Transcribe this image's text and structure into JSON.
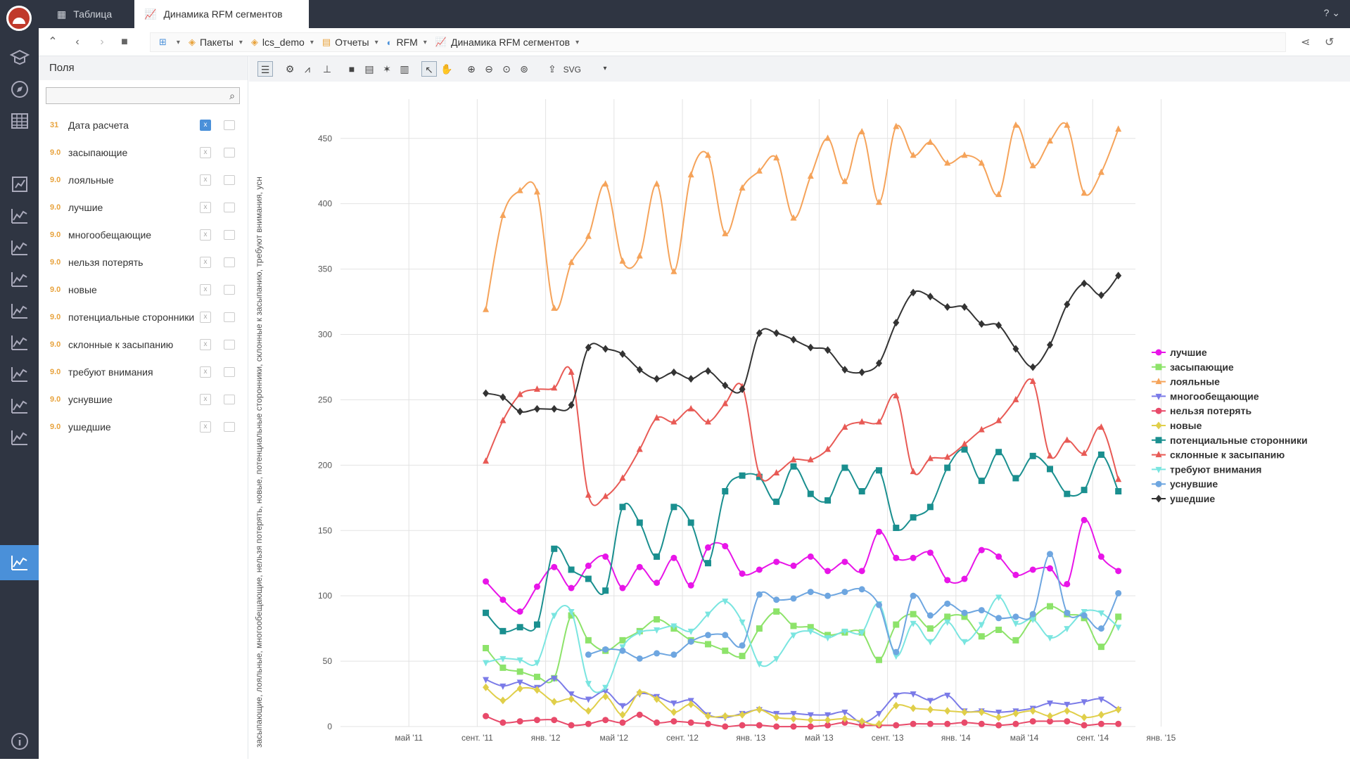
{
  "tabs": [
    {
      "label": "Таблица",
      "icon": "table-icon"
    },
    {
      "label": "Динамика RFM сегментов",
      "icon": "line-chart-icon"
    }
  ],
  "breadcrumbs": [
    "Пакеты",
    "lcs_demo",
    "Отчеты",
    "RFM",
    "Динамика RFM сегментов"
  ],
  "fields_panel": {
    "title": "Поля",
    "search_placeholder": "",
    "items": [
      {
        "type": "31",
        "name": "Дата расчета"
      },
      {
        "type": "9.0",
        "name": "засыпающие"
      },
      {
        "type": "9.0",
        "name": "лояльные"
      },
      {
        "type": "9.0",
        "name": "лучшие"
      },
      {
        "type": "9.0",
        "name": "многообещающие"
      },
      {
        "type": "9.0",
        "name": "нельзя потерять"
      },
      {
        "type": "9.0",
        "name": "новые"
      },
      {
        "type": "9.0",
        "name": "потенциальные сторонники"
      },
      {
        "type": "9.0",
        "name": "склонные к засыпанию"
      },
      {
        "type": "9.0",
        "name": "требуют внимания"
      },
      {
        "type": "9.0",
        "name": "уснувшие"
      },
      {
        "type": "9.0",
        "name": "ушедшие"
      }
    ]
  },
  "toolbar": {
    "export_label": "SVG"
  },
  "chart_data": {
    "type": "line",
    "ylabel": "засыпающие, лояльные, многообещающие, нельзя потерять, новые, потенциальные сторонники, склонные к засыпанию, требуют внимания, усн",
    "ylim": [
      0,
      480
    ],
    "yticks": [
      0,
      50,
      100,
      150,
      200,
      250,
      300,
      350,
      400,
      450
    ],
    "xticks": [
      "май '11",
      "сент. '11",
      "янв. '12",
      "май '12",
      "сент. '12",
      "янв. '13",
      "май '13",
      "сент. '13",
      "янв. '14",
      "май '14",
      "сент. '14",
      "янв. '15"
    ],
    "x_range_months": [
      -1,
      45.5
    ],
    "x_months": [
      7.5,
      8.5,
      9.5,
      10.5,
      11.5,
      12.5,
      13.5,
      14.5,
      15.5,
      16.5,
      17.5,
      18.5,
      19.5,
      20.5,
      21.5,
      22.5,
      23.5,
      24.5,
      25.5,
      26.5,
      27.5,
      28.5,
      29.5,
      30.5,
      31.5,
      32.5,
      33.5,
      34.5,
      35.5,
      36.5,
      37.5,
      38.5,
      39.5,
      40.5,
      41.5,
      42.5,
      43.5,
      44.5
    ],
    "legend_position": "right",
    "series": [
      {
        "name": "лучшие",
        "color": "#e815e8",
        "marker": "circle",
        "values": [
          111,
          97,
          88,
          107,
          122,
          106,
          123,
          130,
          106,
          122,
          110,
          129,
          108,
          137,
          138,
          117,
          120,
          126,
          123,
          130,
          119,
          126,
          119,
          149,
          129,
          129,
          133,
          112,
          113,
          135,
          130,
          116,
          120,
          121,
          109,
          158,
          130,
          119
        ]
      },
      {
        "name": "засыпающие",
        "color": "#8de36a",
        "marker": "square",
        "values": [
          60,
          45,
          42,
          38,
          37,
          85,
          66,
          58,
          66,
          73,
          82,
          75,
          66,
          63,
          58,
          54,
          75,
          88,
          77,
          76,
          70,
          72,
          72,
          51,
          78,
          86,
          75,
          84,
          84,
          69,
          74,
          66,
          83,
          92,
          86,
          83,
          61,
          84
        ]
      },
      {
        "name": "лояльные",
        "color": "#f5a35a",
        "marker": "triangle",
        "values": [
          319,
          391,
          410,
          409,
          320,
          355,
          375,
          415,
          356,
          360,
          415,
          348,
          422,
          437,
          377,
          412,
          425,
          435,
          389,
          421,
          450,
          417,
          455,
          401,
          459,
          437,
          447,
          431,
          437,
          431,
          407,
          460,
          429,
          448,
          460,
          408,
          424,
          457
        ]
      },
      {
        "name": "многообещающие",
        "color": "#7b7be8",
        "marker": "triangle-down",
        "values": [
          36,
          31,
          34,
          30,
          37,
          25,
          21,
          27,
          16,
          25,
          23,
          18,
          20,
          9,
          7,
          10,
          13,
          10,
          10,
          9,
          9,
          11,
          3,
          10,
          24,
          25,
          20,
          24,
          12,
          12,
          11,
          12,
          14,
          18,
          17,
          19,
          21,
          13
        ]
      },
      {
        "name": "нельзя потерять",
        "color": "#e84a6a",
        "marker": "circle",
        "values": [
          8,
          3,
          4,
          5,
          5,
          1,
          2,
          5,
          3,
          9,
          3,
          4,
          3,
          2,
          0,
          1,
          1,
          0,
          0,
          0,
          1,
          3,
          1,
          1,
          1,
          2,
          2,
          2,
          3,
          2,
          1,
          2,
          4,
          4,
          4,
          1,
          2,
          2
        ]
      },
      {
        "name": "новые",
        "color": "#e0cf4a",
        "marker": "diamond",
        "values": [
          30,
          20,
          29,
          28,
          19,
          21,
          12,
          23,
          9,
          26,
          21,
          11,
          17,
          8,
          8,
          9,
          13,
          7,
          6,
          5,
          5,
          6,
          4,
          2,
          16,
          14,
          13,
          12,
          11,
          11,
          7,
          10,
          12,
          8,
          12,
          7,
          9,
          13
        ]
      },
      {
        "name": "потенциальные сторонники",
        "color": "#1a8f8f",
        "marker": "square",
        "values": [
          87,
          73,
          76,
          78,
          136,
          120,
          113,
          104,
          168,
          156,
          130,
          168,
          156,
          125,
          180,
          192,
          191,
          172,
          199,
          178,
          173,
          198,
          180,
          196,
          152,
          160,
          168,
          198,
          212,
          188,
          210,
          190,
          207,
          197,
          178,
          181,
          208,
          180
        ]
      },
      {
        "name": "склонные к засыпанию",
        "color": "#e85a55",
        "marker": "triangle",
        "values": [
          203,
          234,
          254,
          258,
          259,
          271,
          177,
          176,
          190,
          212,
          236,
          233,
          243,
          233,
          247,
          260,
          193,
          194,
          204,
          204,
          212,
          229,
          233,
          233,
          253,
          195,
          205,
          206,
          216,
          227,
          234,
          250,
          264,
          207,
          219,
          209,
          229,
          189
        ]
      },
      {
        "name": "требуют внимания",
        "color": "#7ae5e0",
        "marker": "triangle-down",
        "values": [
          49,
          52,
          51,
          49,
          85,
          88,
          33,
          30,
          61,
          72,
          74,
          77,
          73,
          86,
          96,
          80,
          48,
          52,
          70,
          73,
          68,
          73,
          72,
          94,
          54,
          79,
          65,
          80,
          65,
          78,
          99,
          79,
          82,
          68,
          75,
          88,
          87,
          76
        ]
      },
      {
        "name": "уснувшие",
        "color": "#6ea6e0",
        "marker": "circle",
        "values": [
          null,
          null,
          null,
          null,
          null,
          null,
          55,
          59,
          58,
          52,
          56,
          55,
          65,
          70,
          70,
          62,
          101,
          97,
          98,
          103,
          100,
          103,
          105,
          93,
          57,
          100,
          85,
          94,
          87,
          89,
          83,
          84,
          86,
          132,
          87,
          85,
          75,
          102
        ]
      },
      {
        "name": "ушедшие",
        "color": "#333333",
        "marker": "diamond",
        "values": [
          255,
          252,
          241,
          243,
          243,
          246,
          290,
          289,
          285,
          273,
          266,
          271,
          266,
          272,
          261,
          258,
          301,
          301,
          296,
          290,
          288,
          273,
          271,
          278,
          309,
          332,
          329,
          321,
          321,
          308,
          307,
          289,
          275,
          292,
          323,
          339,
          330,
          345
        ]
      }
    ]
  }
}
